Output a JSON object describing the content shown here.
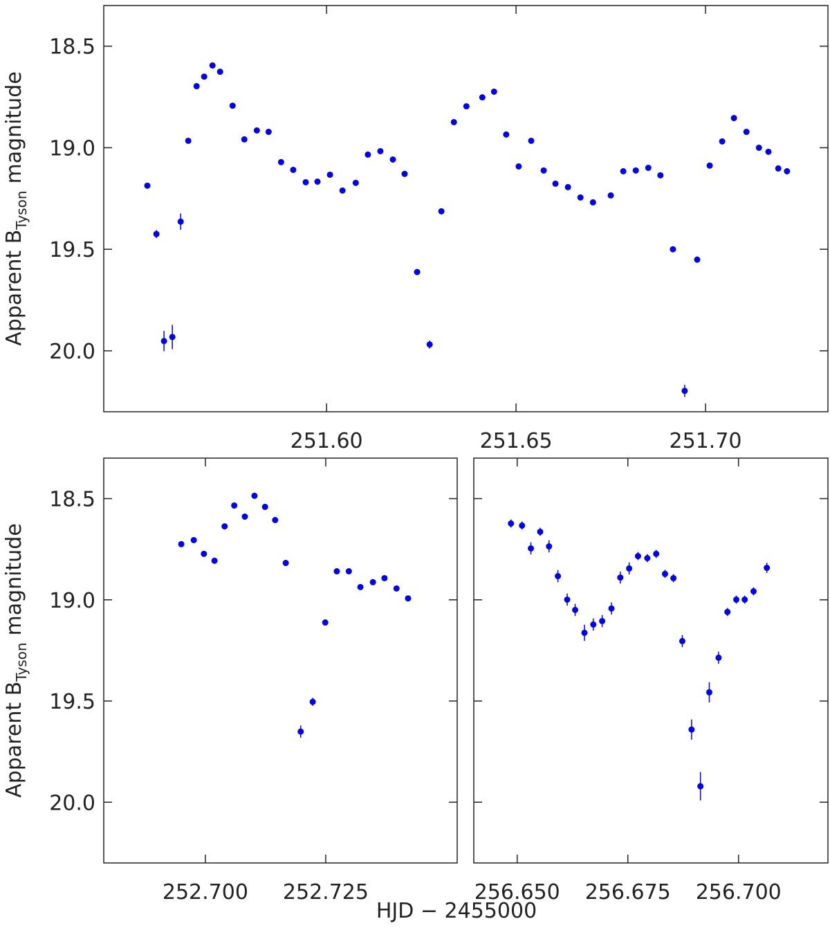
{
  "shared_x_label": "HJD − 2455000",
  "chart_data": [
    {
      "type": "scatter",
      "color": "#0000ee",
      "y_label_parts": [
        "Apparent B",
        "Tyson",
        "magnitude"
      ],
      "xlim": [
        251.5412,
        251.7323
      ],
      "ylim": [
        20.3,
        18.3
      ],
      "xticks": [
        {
          "value": 251.6,
          "label": "251.60"
        },
        251.65,
        {
          "value": 251.7,
          "label": "251.70"
        }
      ],
      "yticks": [
        18.5,
        {
          "value": 19,
          "label": "19.0"
        },
        19.5,
        {
          "value": 20,
          "label": "20.0"
        }
      ],
      "show_ytick_labels": true,
      "x": [
        251.5527,
        251.5551,
        251.5571,
        251.5593,
        251.5615,
        251.5635,
        251.5657,
        251.5677,
        251.5699,
        251.5719,
        251.5752,
        251.5783,
        251.5816,
        251.5847,
        251.588,
        251.5912,
        251.5945,
        251.5976,
        251.6009,
        251.6042,
        251.6077,
        251.6109,
        251.6142,
        251.6175,
        251.6206,
        251.6239,
        251.6272,
        251.6303,
        251.6336,
        251.6369,
        251.6411,
        251.6442,
        251.6474,
        251.6507,
        251.654,
        251.6573,
        251.6604,
        251.6637,
        251.667,
        251.6703,
        251.675,
        251.6783,
        251.6816,
        251.6849,
        251.6881,
        251.6914,
        251.6945,
        251.6978,
        251.7011,
        251.7044,
        251.7075,
        251.7108,
        251.7141,
        251.7166,
        251.7192,
        251.7215
      ],
      "values": [
        19.187,
        19.425,
        19.952,
        19.932,
        19.364,
        18.966,
        18.697,
        18.65,
        18.595,
        18.626,
        18.793,
        18.959,
        18.915,
        18.922,
        19.071,
        19.109,
        19.17,
        19.167,
        19.133,
        19.211,
        19.173,
        19.034,
        19.017,
        19.058,
        19.129,
        19.612,
        19.969,
        19.313,
        18.874,
        18.796,
        18.752,
        18.724,
        18.935,
        19.092,
        18.966,
        19.112,
        19.177,
        19.194,
        19.245,
        19.269,
        19.235,
        19.116,
        19.112,
        19.099,
        19.136,
        19.5,
        20.197,
        19.551,
        19.088,
        18.969,
        18.854,
        18.922,
        19.0,
        19.02,
        19.102,
        19.116
      ],
      "errors": [
        0.01,
        0.02,
        0.05,
        0.06,
        0.04,
        0.01,
        0.01,
        0.01,
        0.01,
        0.01,
        0.01,
        0.01,
        0.01,
        0.01,
        0.01,
        0.01,
        0.01,
        0.01,
        0.01,
        0.01,
        0.01,
        0.01,
        0.01,
        0.01,
        0.01,
        0.015,
        0.02,
        0.01,
        0.01,
        0.01,
        0.01,
        0.01,
        0.01,
        0.01,
        0.01,
        0.01,
        0.01,
        0.01,
        0.01,
        0.01,
        0.01,
        0.01,
        0.01,
        0.01,
        0.01,
        0.01,
        0.03,
        0.015,
        0.01,
        0.01,
        0.01,
        0.01,
        0.01,
        0.01,
        0.015,
        0.015
      ]
    },
    {
      "type": "scatter",
      "color": "#0000ee",
      "y_label_parts": [
        "Apparent B",
        "Tyson",
        "magnitude"
      ],
      "xlim": [
        252.6789,
        252.7523
      ],
      "ylim": [
        20.3,
        18.3
      ],
      "xticks": [
        {
          "value": 252.7,
          "label": "252.700"
        },
        252.725
      ],
      "yticks": [
        18.5,
        {
          "value": 19,
          "label": "19.0"
        },
        19.5,
        {
          "value": 20,
          "label": "20.0"
        }
      ],
      "show_ytick_labels": true,
      "x": [
        252.695,
        252.6976,
        252.6997,
        252.7019,
        252.704,
        252.706,
        252.7082,
        252.7102,
        252.7124,
        252.7145,
        252.7167,
        252.7198,
        252.7223,
        252.7249,
        252.7273,
        252.7298,
        252.7322,
        252.7348,
        252.7372,
        252.7397,
        252.7421
      ],
      "values": [
        18.725,
        18.705,
        18.773,
        18.807,
        18.637,
        18.534,
        18.589,
        18.486,
        18.541,
        18.606,
        18.818,
        19.651,
        19.504,
        19.112,
        18.859,
        18.859,
        18.937,
        18.913,
        18.893,
        18.944,
        18.993
      ],
      "errors": [
        0.01,
        0.01,
        0.01,
        0.01,
        0.01,
        0.01,
        0.01,
        0.01,
        0.01,
        0.01,
        0.015,
        0.03,
        0.02,
        0.015,
        0.01,
        0.01,
        0.01,
        0.01,
        0.01,
        0.01,
        0.01
      ]
    },
    {
      "type": "scatter",
      "color": "#0000ee",
      "xlim": [
        256.6402,
        256.7202
      ],
      "ylim": [
        20.3,
        18.3
      ],
      "xticks": [
        {
          "value": 256.65,
          "label": "256.650"
        },
        256.675,
        {
          "value": 256.7,
          "label": "256.700"
        }
      ],
      "yticks": [
        18.5,
        19,
        19.5,
        20
      ],
      "show_ytick_labels": false,
      "x": [
        256.6486,
        256.6511,
        256.6531,
        256.6552,
        256.6572,
        256.6592,
        256.6613,
        256.6631,
        256.6652,
        256.6672,
        256.6692,
        256.6713,
        256.6733,
        256.6753,
        256.6773,
        256.6794,
        256.6814,
        256.6834,
        256.6853,
        256.6873,
        256.6894,
        256.6914,
        256.6934,
        256.6955,
        256.6975,
        256.6995,
        256.7014,
        256.7034,
        256.7064
      ],
      "values": [
        18.623,
        18.633,
        18.746,
        18.664,
        18.736,
        18.883,
        18.999,
        19.05,
        19.163,
        19.122,
        19.105,
        19.043,
        18.89,
        18.845,
        18.784,
        18.794,
        18.773,
        18.872,
        18.893,
        19.204,
        19.641,
        19.921,
        19.457,
        19.286,
        19.06,
        18.999,
        18.999,
        18.958,
        18.842
      ],
      "errors": [
        0.02,
        0.02,
        0.03,
        0.02,
        0.03,
        0.03,
        0.03,
        0.03,
        0.04,
        0.03,
        0.03,
        0.03,
        0.03,
        0.03,
        0.02,
        0.02,
        0.02,
        0.02,
        0.02,
        0.03,
        0.05,
        0.07,
        0.05,
        0.03,
        0.02,
        0.02,
        0.02,
        0.02,
        0.025
      ]
    }
  ]
}
